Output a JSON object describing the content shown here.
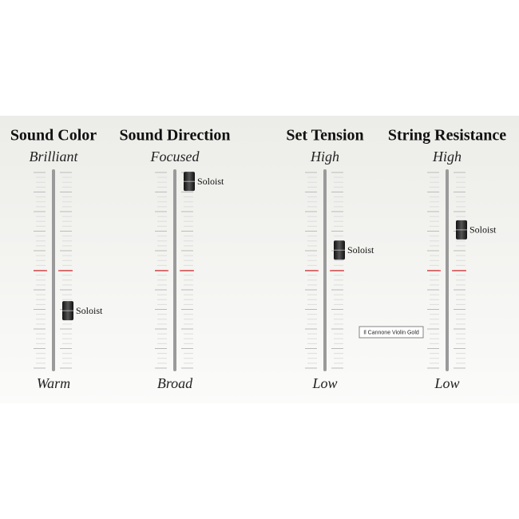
{
  "range": [
    0,
    100
  ],
  "sliders": [
    {
      "title": "Sound Color",
      "top": "Brilliant",
      "bottom": "Warm",
      "knob": "Soloist",
      "value": 30
    },
    {
      "title": "Sound Direction",
      "top": "Focused",
      "bottom": "Broad",
      "knob": "Soloist",
      "value": 94
    },
    {
      "title": "Set Tension",
      "top": "High",
      "bottom": "Low",
      "knob": "Soloist",
      "value": 60
    },
    {
      "title": "String Resistance",
      "top": "High",
      "bottom": "Low",
      "knob": "Soloist",
      "value": 70
    }
  ],
  "tooltip": "Il Cannone Violin Gold"
}
